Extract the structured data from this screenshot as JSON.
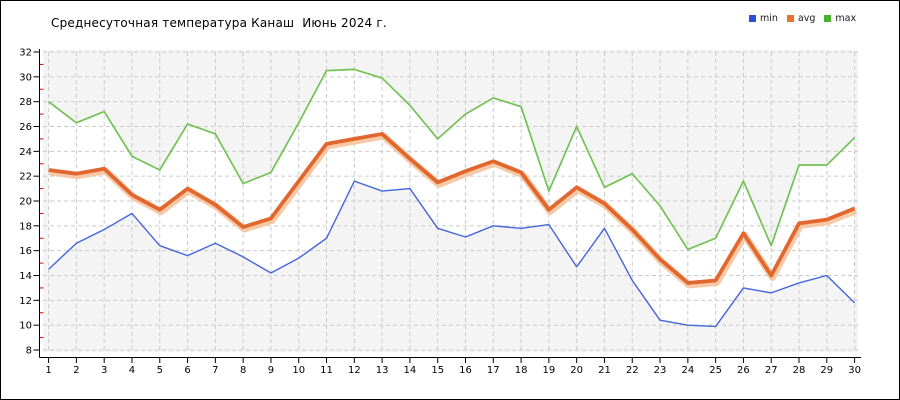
{
  "title": "Среднесуточная температура Канаш  Июнь 2024 г.",
  "legend": [
    {
      "label": "min",
      "color": "#2b4fd8"
    },
    {
      "label": "avg",
      "color": "#e8712f"
    },
    {
      "label": "max",
      "color": "#46b42a"
    }
  ],
  "chart_data": {
    "type": "line",
    "title": "Среднесуточная температура Канаш  Июнь 2024 г.",
    "xlabel": "",
    "ylabel": "",
    "x": [
      1,
      2,
      3,
      4,
      5,
      6,
      7,
      8,
      9,
      10,
      11,
      12,
      13,
      14,
      15,
      16,
      17,
      18,
      19,
      20,
      21,
      22,
      23,
      24,
      25,
      26,
      27,
      28,
      29,
      30
    ],
    "xlim": [
      1,
      30
    ],
    "ylim": [
      8,
      32
    ],
    "ytick_step": 2,
    "grid": true,
    "grid_style": "dashed",
    "legend_position": "top-right",
    "band_between_min_max_fill": "#ffffff",
    "series": [
      {
        "name": "min",
        "color": "#4465dd",
        "width": 1.4,
        "values": [
          14.5,
          16.6,
          17.7,
          19.0,
          16.4,
          15.6,
          16.6,
          15.5,
          14.2,
          15.4,
          17.0,
          21.6,
          20.8,
          21.0,
          17.8,
          17.1,
          18.0,
          17.8,
          18.1,
          14.7,
          17.8,
          13.6,
          10.4,
          10.0,
          9.9,
          13.0,
          12.6,
          13.4,
          14.0,
          11.8
        ]
      },
      {
        "name": "avg",
        "color": "#e2672e",
        "width": 3.8,
        "halo_color": "#f6c39c",
        "values": [
          22.5,
          22.2,
          22.6,
          20.5,
          19.3,
          21.0,
          19.7,
          17.9,
          18.6,
          21.6,
          24.6,
          25.0,
          25.4,
          23.4,
          21.5,
          22.4,
          23.2,
          22.3,
          19.3,
          21.1,
          19.8,
          17.7,
          15.3,
          13.4,
          13.6,
          17.4,
          14.0,
          18.2,
          18.5,
          19.4
        ]
      },
      {
        "name": "max",
        "color": "#74c156",
        "width": 1.7,
        "values": [
          28.0,
          26.3,
          27.2,
          23.6,
          22.5,
          26.2,
          25.4,
          21.4,
          22.3,
          26.3,
          30.5,
          30.6,
          29.9,
          27.7,
          25.0,
          27.0,
          28.3,
          27.6,
          20.8,
          26.0,
          21.1,
          22.2,
          19.6,
          16.1,
          17.0,
          21.6,
          16.4,
          22.9,
          22.9,
          25.1
        ]
      }
    ]
  },
  "axis": {
    "major_tick_color": "#000000",
    "minor_tick_color": "#dd0000",
    "label_color": "#000000"
  },
  "colors": {
    "plot_bg": "#f4f4f4",
    "grid": "#cbcbcb",
    "frame": "#000000",
    "page_bg": "#ffffff"
  }
}
